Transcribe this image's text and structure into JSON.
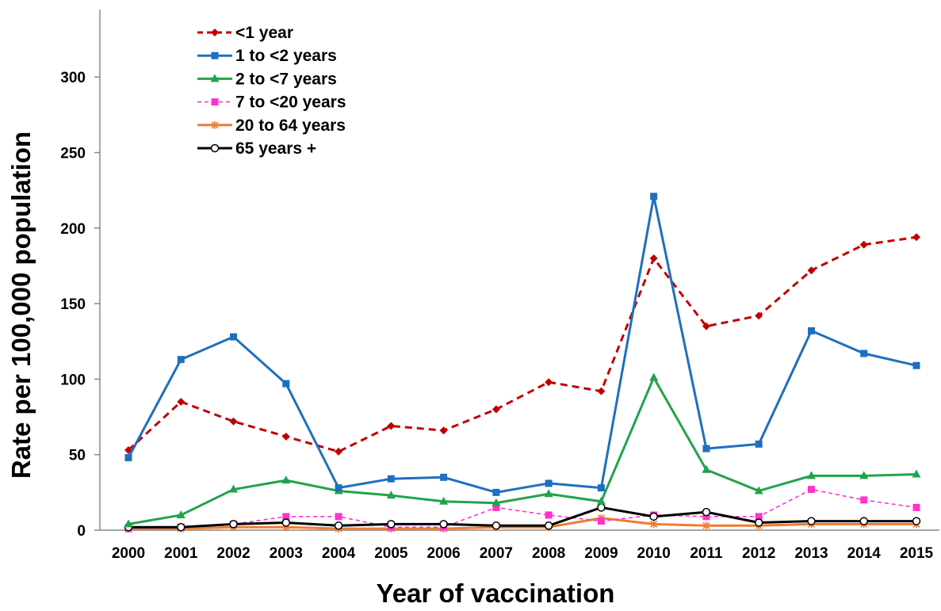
{
  "chart_data": {
    "type": "line",
    "xlabel": "Year of vaccination",
    "ylabel": "Rate per 100,000 population",
    "ylim": [
      0,
      340
    ],
    "yticks": [
      0,
      50,
      100,
      150,
      200,
      250,
      300
    ],
    "categories": [
      "2000",
      "2001",
      "2002",
      "2003",
      "2004",
      "2005",
      "2006",
      "2007",
      "2008",
      "2009",
      "2010",
      "2011",
      "2012",
      "2013",
      "2014",
      "2015"
    ],
    "legend_position": "top-left",
    "grid": false,
    "series": [
      {
        "name": "<1 year",
        "color": "#C00000",
        "dash": "dashed",
        "marker": "diamond",
        "values": [
          53,
          85,
          72,
          62,
          52,
          69,
          66,
          80,
          98,
          92,
          180,
          135,
          142,
          172,
          189,
          194
        ]
      },
      {
        "name": "1 to <2 years",
        "color": "#1F6FBF",
        "dash": "solid",
        "marker": "square",
        "values": [
          48,
          113,
          128,
          97,
          28,
          34,
          35,
          25,
          31,
          28,
          221,
          54,
          57,
          132,
          117,
          109
        ]
      },
      {
        "name": "2 to <7 years",
        "color": "#22A34A",
        "dash": "solid",
        "marker": "triangle",
        "values": [
          4,
          10,
          27,
          33,
          26,
          23,
          19,
          18,
          24,
          19,
          101,
          40,
          26,
          36,
          36,
          37
        ]
      },
      {
        "name": "7 to <20 years",
        "color": "#FF33CC",
        "dash": "dashed",
        "marker": "square",
        "values": [
          1,
          2,
          4,
          9,
          9,
          2,
          2,
          15,
          10,
          6,
          10,
          9,
          9,
          27,
          20,
          15
        ]
      },
      {
        "name": "20 to 64 years",
        "color": "#ED7D31",
        "dash": "solid",
        "marker": "star",
        "values": [
          1,
          1,
          2,
          2,
          1,
          1,
          1,
          2,
          2,
          8,
          4,
          3,
          3,
          4,
          4,
          4
        ]
      },
      {
        "name": "65 years +",
        "color": "#000000",
        "dash": "solid",
        "marker": "circle-open",
        "values": [
          2,
          2,
          4,
          5,
          3,
          4,
          4,
          3,
          3,
          15,
          9,
          12,
          5,
          6,
          6,
          6
        ]
      }
    ]
  }
}
